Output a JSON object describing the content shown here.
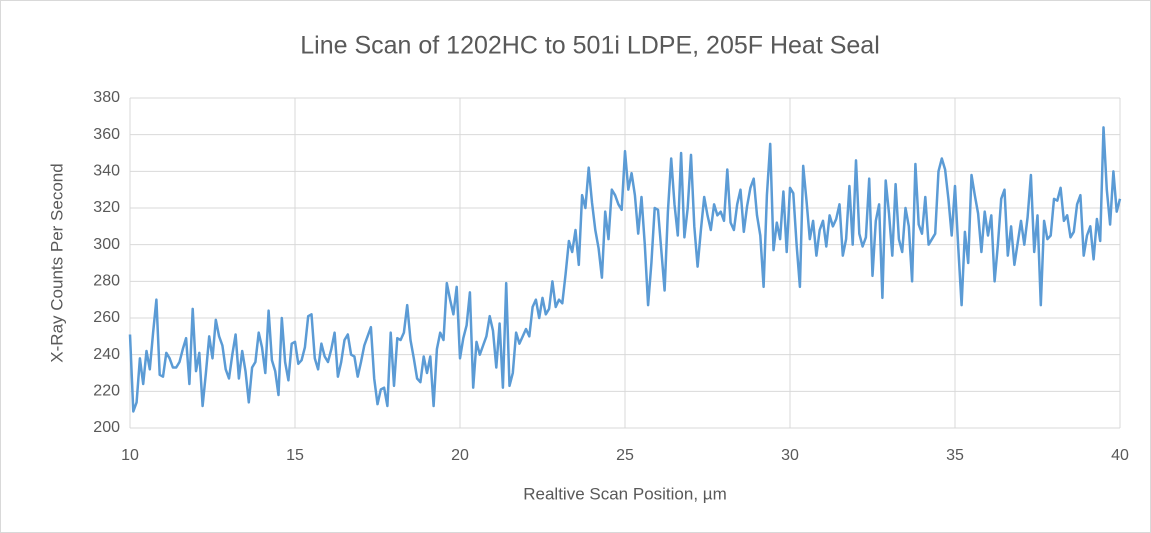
{
  "chart_data": {
    "type": "line",
    "title": "Line Scan of 1202HC to 501i LDPE, 205F Heat Seal",
    "x_label": "Realtive Scan Position, µm",
    "y_label": "X-Ray Counts Per Second",
    "xlim": [
      10,
      40
    ],
    "xticks": [
      10,
      15,
      20,
      25,
      30,
      35,
      40
    ],
    "ylim": [
      200,
      380
    ],
    "yticks": [
      200,
      220,
      240,
      260,
      280,
      300,
      320,
      340,
      360,
      380
    ],
    "grid": true,
    "x": [
      10.0,
      10.1,
      10.2,
      10.3,
      10.4,
      10.5,
      10.6,
      10.7,
      10.8,
      10.9,
      11.0,
      11.1,
      11.2,
      11.3,
      11.4,
      11.5,
      11.6,
      11.7,
      11.8,
      11.9,
      12.0,
      12.1,
      12.2,
      12.3,
      12.4,
      12.5,
      12.6,
      12.7,
      12.8,
      12.9,
      13.0,
      13.1,
      13.2,
      13.3,
      13.4,
      13.5,
      13.6,
      13.7,
      13.8,
      13.9,
      14.0,
      14.1,
      14.2,
      14.3,
      14.4,
      14.5,
      14.6,
      14.7,
      14.8,
      14.9,
      15.0,
      15.1,
      15.2,
      15.3,
      15.4,
      15.5,
      15.6,
      15.7,
      15.8,
      15.9,
      16.0,
      16.1,
      16.2,
      16.3,
      16.4,
      16.5,
      16.6,
      16.7,
      16.8,
      16.9,
      17.0,
      17.1,
      17.2,
      17.3,
      17.4,
      17.5,
      17.6,
      17.7,
      17.8,
      17.9,
      18.0,
      18.1,
      18.2,
      18.3,
      18.4,
      18.5,
      18.6,
      18.7,
      18.8,
      18.9,
      19.0,
      19.1,
      19.2,
      19.3,
      19.4,
      19.5,
      19.6,
      19.7,
      19.8,
      19.9,
      20.0,
      20.1,
      20.2,
      20.3,
      20.4,
      20.5,
      20.6,
      20.7,
      20.8,
      20.9,
      21.0,
      21.1,
      21.2,
      21.3,
      21.4,
      21.5,
      21.6,
      21.7,
      21.8,
      21.9,
      22.0,
      22.1,
      22.2,
      22.3,
      22.4,
      22.5,
      22.6,
      22.7,
      22.8,
      22.9,
      23.0,
      23.1,
      23.2,
      23.3,
      23.4,
      23.5,
      23.6,
      23.7,
      23.8,
      23.9,
      24.0,
      24.1,
      24.2,
      24.3,
      24.4,
      24.5,
      24.6,
      24.7,
      24.8,
      24.9,
      25.0,
      25.1,
      25.2,
      25.3,
      25.4,
      25.5,
      25.6,
      25.7,
      25.8,
      25.9,
      26.0,
      26.1,
      26.2,
      26.3,
      26.4,
      26.5,
      26.6,
      26.7,
      26.8,
      26.9,
      27.0,
      27.1,
      27.2,
      27.3,
      27.4,
      27.5,
      27.6,
      27.7,
      27.8,
      27.9,
      28.0,
      28.1,
      28.2,
      28.3,
      28.4,
      28.5,
      28.6,
      28.7,
      28.8,
      28.9,
      29.0,
      29.1,
      29.2,
      29.3,
      29.4,
      29.5,
      29.6,
      29.7,
      29.8,
      29.9,
      30.0,
      30.1,
      30.2,
      30.3,
      30.4,
      30.5,
      30.6,
      30.7,
      30.8,
      30.9,
      31.0,
      31.1,
      31.2,
      31.3,
      31.4,
      31.5,
      31.6,
      31.7,
      31.8,
      31.9,
      32.0,
      32.1,
      32.2,
      32.3,
      32.4,
      32.5,
      32.6,
      32.7,
      32.8,
      32.9,
      33.0,
      33.1,
      33.2,
      33.3,
      33.4,
      33.5,
      33.6,
      33.7,
      33.8,
      33.9,
      34.0,
      34.1,
      34.2,
      34.3,
      34.4,
      34.5,
      34.6,
      34.7,
      34.8,
      34.9,
      35.0,
      35.1,
      35.2,
      35.3,
      35.4,
      35.5,
      35.6,
      35.7,
      35.8,
      35.9,
      36.0,
      36.1,
      36.2,
      36.3,
      36.4,
      36.5,
      36.6,
      36.7,
      36.8,
      36.9,
      37.0,
      37.1,
      37.2,
      37.3,
      37.4,
      37.5,
      37.6,
      37.7,
      37.8,
      37.9,
      38.0,
      38.1,
      38.2,
      38.3,
      38.4,
      38.5,
      38.6,
      38.7,
      38.8,
      38.9,
      39.0,
      39.1,
      39.2,
      39.3,
      39.4,
      39.5,
      39.6,
      39.7,
      39.8,
      39.9,
      40.0
    ],
    "series": [
      {
        "color": "#5b9bd5",
        "values": [
          251,
          209,
          214,
          238,
          224,
          242,
          232,
          252,
          270,
          229,
          228,
          241,
          238,
          233,
          233,
          236,
          243,
          249,
          224,
          265,
          231,
          241,
          212,
          230,
          250,
          238,
          259,
          250,
          245,
          232,
          227,
          240,
          251,
          227,
          242,
          231,
          214,
          233,
          236,
          252,
          244,
          230,
          264,
          237,
          231,
          218,
          260,
          236,
          226,
          246,
          247,
          235,
          237,
          244,
          261,
          262,
          238,
          232,
          246,
          239,
          236,
          243,
          252,
          228,
          236,
          248,
          251,
          240,
          239,
          228,
          236,
          245,
          250,
          255,
          227,
          213,
          221,
          222,
          212,
          252,
          223,
          249,
          248,
          252,
          267,
          248,
          238,
          227,
          225,
          239,
          230,
          239,
          212,
          243,
          252,
          248,
          279,
          270,
          262,
          277,
          238,
          249,
          256,
          274,
          222,
          247,
          240,
          245,
          250,
          261,
          253,
          233,
          257,
          222,
          279,
          223,
          230,
          252,
          246,
          250,
          254,
          250,
          266,
          270,
          260,
          271,
          262,
          265,
          280,
          266,
          270,
          268,
          284,
          302,
          296,
          308,
          289,
          327,
          320,
          342,
          323,
          308,
          298,
          282,
          318,
          303,
          330,
          327,
          322,
          319,
          351,
          330,
          339,
          327,
          306,
          326,
          300,
          267,
          290,
          320,
          319,
          297,
          275,
          318,
          347,
          322,
          305,
          350,
          304,
          320,
          349,
          310,
          288,
          308,
          326,
          316,
          308,
          322,
          316,
          318,
          313,
          341,
          312,
          308,
          322,
          330,
          307,
          321,
          331,
          336,
          316,
          305,
          277,
          327,
          355,
          297,
          312,
          303,
          329,
          296,
          331,
          328,
          300,
          277,
          343,
          324,
          303,
          313,
          294,
          308,
          313,
          299,
          316,
          310,
          314,
          322,
          294,
          303,
          332,
          300,
          346,
          306,
          299,
          304,
          336,
          283,
          313,
          322,
          271,
          335,
          317,
          294,
          333,
          303,
          296,
          320,
          310,
          280,
          344,
          311,
          306,
          326,
          300,
          303,
          306,
          340,
          347,
          341,
          325,
          305,
          332,
          298,
          267,
          307,
          290,
          338,
          327,
          317,
          296,
          318,
          305,
          316,
          280,
          300,
          325,
          330,
          294,
          310,
          289,
          301,
          313,
          300,
          315,
          338,
          296,
          316,
          267,
          313,
          303,
          305,
          325,
          324,
          331,
          313,
          316,
          304,
          307,
          322,
          327,
          294,
          305,
          310,
          292,
          314,
          302,
          364,
          330,
          311,
          340,
          318,
          325
        ]
      }
    ]
  }
}
